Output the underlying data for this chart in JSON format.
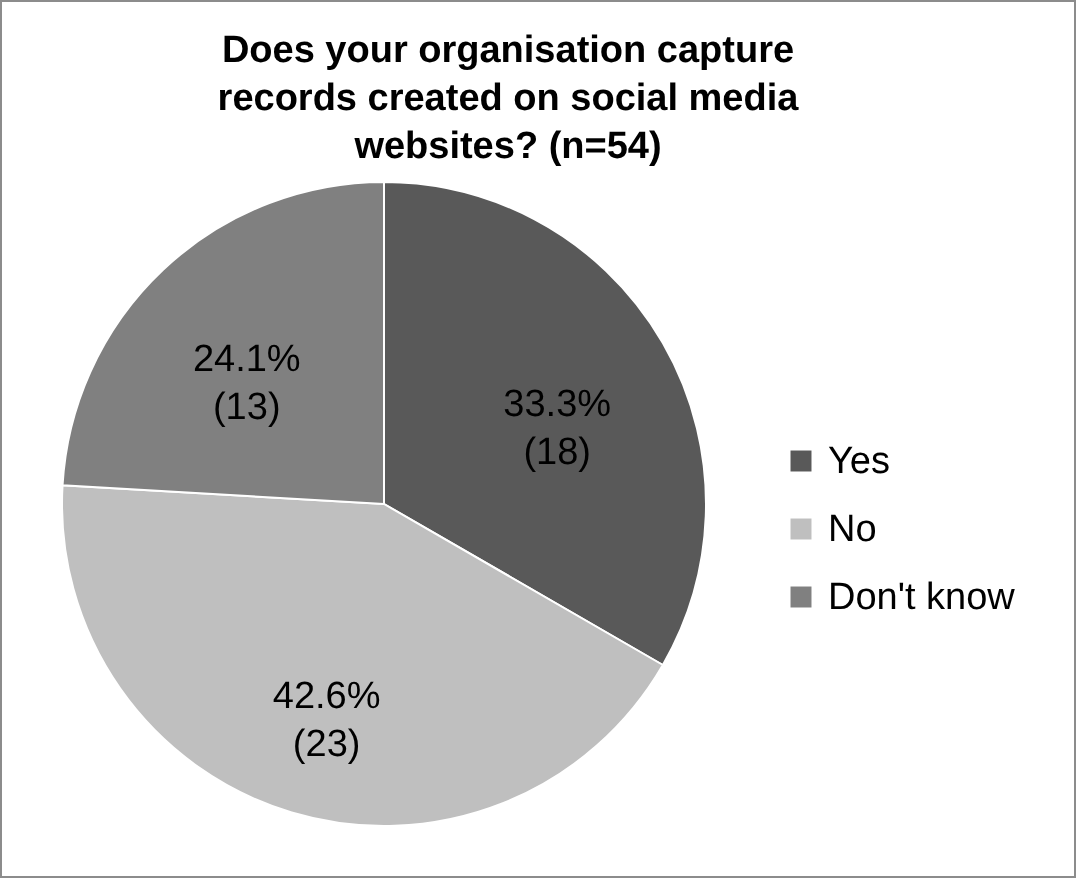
{
  "chart_data": {
    "type": "pie",
    "title": "Does your organisation capture records created on social media websites? (n=54)",
    "categories": [
      "Yes",
      "No",
      "Don't know"
    ],
    "values": [
      18,
      23,
      13
    ],
    "colors": [
      "#595959",
      "#bfbfbf",
      "#808080"
    ],
    "value_labels": [
      "33.3% (18)",
      "42.6% (23)",
      "24.1% (13)"
    ],
    "legend": "right"
  }
}
